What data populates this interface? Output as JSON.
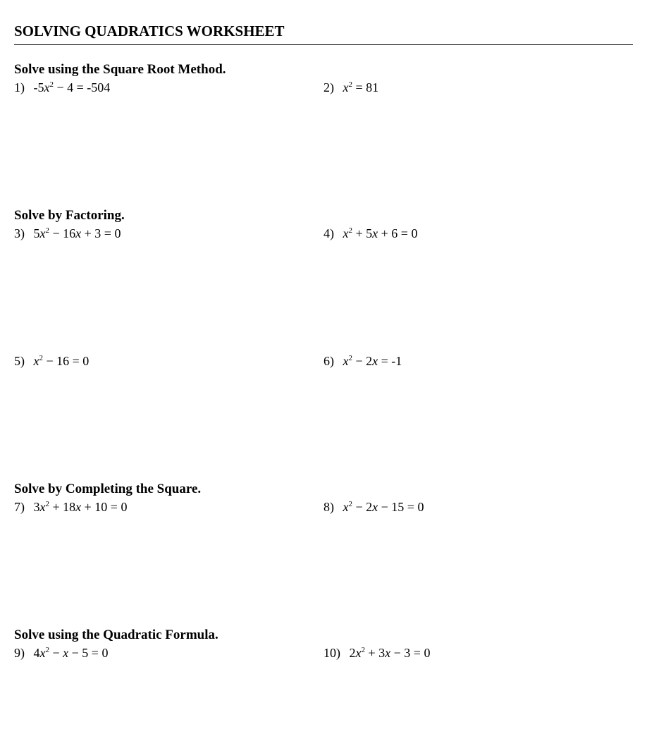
{
  "title": "SOLVING QUADRATICS WORKSHEET",
  "sections": [
    {
      "header": "Solve using the Square Root Method.",
      "rows": [
        {
          "left": {
            "num": "1)",
            "eq_html": "&nbsp;-5<span class='var'>x</span><sup>2</sup> − 4 = -504"
          },
          "right": {
            "num": "2)",
            "eq_html": "&nbsp;<span class='var'>x</span><sup>2</sup> = 81"
          }
        }
      ]
    },
    {
      "header": "Solve by Factoring.",
      "rows": [
        {
          "left": {
            "num": "3)",
            "eq_html": "&nbsp;5<span class='var'>x</span><sup>2</sup> − 16<span class='var'>x</span> + 3 = 0"
          },
          "right": {
            "num": "4)",
            "eq_html": "&nbsp;<span class='var'>x</span><sup>2</sup> + 5<span class='var'>x</span> + 6 = 0"
          }
        },
        {
          "left": {
            "num": "5)",
            "eq_html": "&nbsp;<span class='var'>x</span><sup>2</sup> − 16 = 0"
          },
          "right": {
            "num": "6)",
            "eq_html": "&nbsp;<span class='var'>x</span><sup>2</sup> − 2<span class='var'>x</span> = -1"
          }
        }
      ]
    },
    {
      "header": "Solve by Completing the Square.",
      "rows": [
        {
          "left": {
            "num": "7)",
            "eq_html": "&nbsp;3<span class='var'>x</span><sup>2</sup> + 18<span class='var'>x</span> + 10 = 0"
          },
          "right": {
            "num": "8)",
            "eq_html": "&nbsp;<span class='var'>x</span><sup>2</sup> − 2<span class='var'>x</span> − 15 = 0"
          }
        }
      ]
    },
    {
      "header": "Solve using the Quadratic Formula.",
      "rows": [
        {
          "left": {
            "num": "9)",
            "eq_html": "&nbsp;4<span class='var'>x</span><sup>2</sup> − <span class='var'>x</span> − 5 = 0"
          },
          "right": {
            "num": "10)",
            "eq_html": "&nbsp;2<span class='var'>x</span><sup>2</sup> + 3<span class='var'>x</span> − 3 = 0"
          }
        }
      ]
    }
  ]
}
